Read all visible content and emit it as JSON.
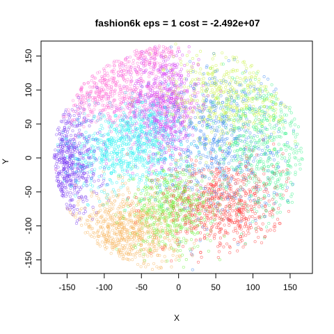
{
  "chart_data": {
    "type": "scatter",
    "title": "fashion6k eps = 1 cost = -2.492e+07",
    "xlabel": "X",
    "ylabel": "Y",
    "xlim": [
      -185,
      180
    ],
    "ylim": [
      -170,
      172
    ],
    "xticks": [
      -150,
      -100,
      -50,
      0,
      50,
      100,
      150
    ],
    "yticks": [
      -150,
      -100,
      -50,
      0,
      50,
      100,
      150
    ],
    "grid": false,
    "legend": "none",
    "series": [
      {
        "color": "#ff69d4",
        "clusters": [
          {
            "cx": -100,
            "cy": 100,
            "sx": 42,
            "sy": 28,
            "n": 650
          },
          {
            "cx": -40,
            "cy": 155,
            "sx": 22,
            "sy": 10,
            "n": 120
          }
        ]
      },
      {
        "color": "#d43cf2",
        "clusters": [
          {
            "cx": -20,
            "cy": 80,
            "sx": 24,
            "sy": 42,
            "n": 700
          }
        ]
      },
      {
        "color": "#2ef2f2",
        "clusters": [
          {
            "cx": -75,
            "cy": 10,
            "sx": 40,
            "sy": 30,
            "n": 650
          },
          {
            "cx": -40,
            "cy": 50,
            "sx": 20,
            "sy": 20,
            "n": 200
          }
        ]
      },
      {
        "color": "#7a3cf2",
        "clusters": [
          {
            "cx": -150,
            "cy": -10,
            "sx": 22,
            "sy": 40,
            "n": 700
          }
        ]
      },
      {
        "color": "#f7b660",
        "clusters": [
          {
            "cx": -70,
            "cy": -110,
            "sx": 35,
            "sy": 30,
            "n": 800
          }
        ]
      },
      {
        "color": "#6cf23c",
        "clusters": [
          {
            "cx": -10,
            "cy": -75,
            "sx": 28,
            "sy": 30,
            "n": 500
          }
        ]
      },
      {
        "color": "#ff3c3c",
        "clusters": [
          {
            "cx": 60,
            "cy": -70,
            "sx": 40,
            "sy": 35,
            "n": 700
          }
        ]
      },
      {
        "color": "#3c88f2",
        "clusters": [
          {
            "cx": 50,
            "cy": 30,
            "sx": 45,
            "sy": 55,
            "n": 650
          }
        ]
      },
      {
        "color": "#c8f23c",
        "clusters": [
          {
            "cx": 70,
            "cy": 90,
            "sx": 45,
            "sy": 35,
            "n": 500
          }
        ]
      },
      {
        "color": "#3cf28c",
        "clusters": [
          {
            "cx": 115,
            "cy": 10,
            "sx": 35,
            "sy": 55,
            "n": 600
          }
        ]
      }
    ]
  }
}
